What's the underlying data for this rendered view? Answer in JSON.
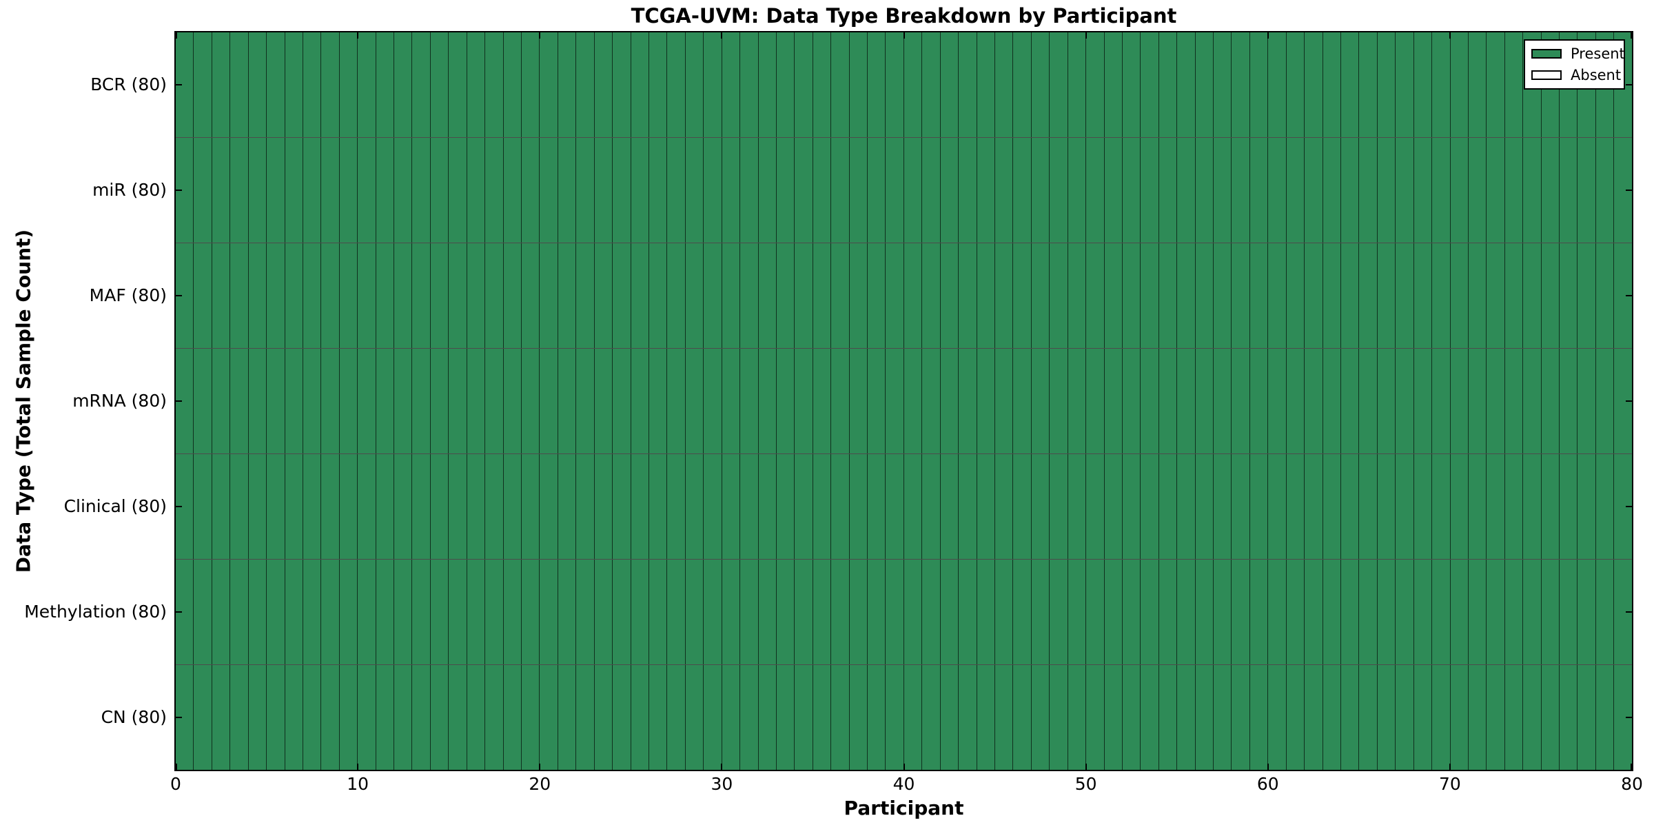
{
  "figure": {
    "title": "TCGA-UVM: Data Type Breakdown by Participant",
    "xlabel": "Participant",
    "ylabel": "Data Type (Total Sample Count)"
  },
  "colors": {
    "present": "#2e8b57",
    "absent": "#ffffff",
    "cell_border": "rgba(0,0,0,0.65)",
    "spine": "#000000",
    "background": "#ffffff",
    "text": "#000000"
  },
  "chart_data": {
    "type": "heatmap",
    "title": "TCGA-UVM: Data Type Breakdown by Participant",
    "xlabel": "Participant",
    "ylabel": "Data Type (Total Sample Count)",
    "xlim": [
      0,
      80
    ],
    "x_ticks": [
      0,
      10,
      20,
      30,
      40,
      50,
      60,
      70,
      80
    ],
    "n_participants": 80,
    "rows": [
      {
        "label": "BCR (80)",
        "data_type": "BCR",
        "total_samples": 80,
        "present_count": 80,
        "absent_count": 0
      },
      {
        "label": "miR (80)",
        "data_type": "miR",
        "total_samples": 80,
        "present_count": 80,
        "absent_count": 0
      },
      {
        "label": "MAF (80)",
        "data_type": "MAF",
        "total_samples": 80,
        "present_count": 80,
        "absent_count": 0
      },
      {
        "label": "mRNA (80)",
        "data_type": "mRNA",
        "total_samples": 80,
        "present_count": 80,
        "absent_count": 0
      },
      {
        "label": "Clinical (80)",
        "data_type": "Clinical",
        "total_samples": 80,
        "present_count": 80,
        "absent_count": 0
      },
      {
        "label": "Methylation (80)",
        "data_type": "Methylation",
        "total_samples": 80,
        "present_count": 80,
        "absent_count": 0
      },
      {
        "label": "CN (80)",
        "data_type": "CN",
        "total_samples": 80,
        "present_count": 80,
        "absent_count": 0
      }
    ],
    "all_cells_present": true,
    "grid": true,
    "legend_position": "upper right",
    "legend": [
      {
        "label": "Present",
        "color": "#2e8b57"
      },
      {
        "label": "Absent",
        "color": "#ffffff"
      }
    ]
  }
}
